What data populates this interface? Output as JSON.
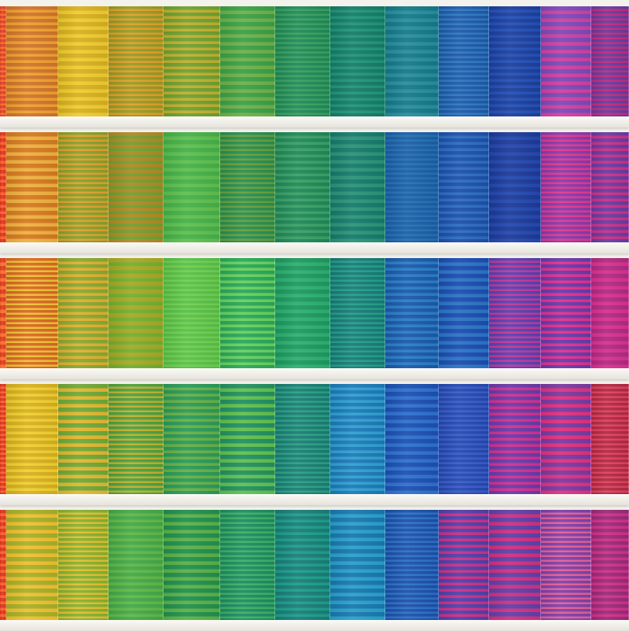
{
  "artwork": {
    "rows": [
      {
        "panels": [
          [
            "#e0442a",
            "#ff6a2a"
          ],
          [
            "#d0752a",
            "#f0a030"
          ],
          [
            "#d8b020",
            "#f0cc30"
          ],
          [
            "#9a9a25",
            "#e0a028"
          ],
          [
            "#70a030",
            "#c0b030"
          ],
          [
            "#3aa048",
            "#70b048"
          ],
          [
            "#1f8a58",
            "#3aa060"
          ],
          [
            "#167c66",
            "#20957a"
          ],
          [
            "#147a86",
            "#2a8ca0"
          ],
          [
            "#1d5aa8",
            "#2f77c0"
          ],
          [
            "#1d3f9c",
            "#2350b8"
          ],
          [
            "#7b4ab8",
            "#d040a0"
          ],
          [
            "#6a3a9c",
            "#c02a80"
          ]
        ]
      },
      {
        "panels": [
          [
            "#e03820",
            "#ff6030"
          ],
          [
            "#d47a20",
            "#f0b040"
          ],
          [
            "#8aa028",
            "#e0a030"
          ],
          [
            "#b08a25",
            "#6ea030"
          ],
          [
            "#46b048",
            "#5ec050"
          ],
          [
            "#2a8e4e",
            "#64a040"
          ],
          [
            "#1f8858",
            "#3aa066"
          ],
          [
            "#167a6c",
            "#2a9478"
          ],
          [
            "#1a5ea6",
            "#2570b4"
          ],
          [
            "#1c50aa",
            "#2c6cc0"
          ],
          [
            "#1c3a98",
            "#2448b0"
          ],
          [
            "#8a3aa8",
            "#e03890"
          ],
          [
            "#6a3aa0",
            "#c83088"
          ]
        ]
      },
      {
        "panels": [
          [
            "#e04020",
            "#ff7030"
          ],
          [
            "#d86a20",
            "#f0c038"
          ],
          [
            "#8aa830",
            "#e0b030"
          ],
          [
            "#a8a825",
            "#70b030"
          ],
          [
            "#58c048",
            "#70d050"
          ],
          [
            "#2aa858",
            "#68d060"
          ],
          [
            "#1f9860",
            "#2cb070"
          ],
          [
            "#197a78",
            "#22a088"
          ],
          [
            "#1a5aa8",
            "#2a7cc8"
          ],
          [
            "#1c4cb0",
            "#2a74c4"
          ],
          [
            "#5a40b0",
            "#c03898"
          ],
          [
            "#6a3aa8",
            "#e03090"
          ],
          [
            "#b02a80",
            "#d83090"
          ]
        ]
      },
      {
        "panels": [
          [
            "#e03820",
            "#ff6030"
          ],
          [
            "#d8b020",
            "#f0d030"
          ],
          [
            "#70a838",
            "#e0b830"
          ],
          [
            "#4ea040",
            "#c0b030"
          ],
          [
            "#2a9a58",
            "#68b048"
          ],
          [
            "#239060",
            "#60c050"
          ],
          [
            "#1a7d74",
            "#2aa084"
          ],
          [
            "#1c7ab8",
            "#30a0d0"
          ],
          [
            "#1c50b0",
            "#2e70d0"
          ],
          [
            "#2448b0",
            "#3a5cc8"
          ],
          [
            "#6a3aa8",
            "#d03090"
          ],
          [
            "#7a3aa0",
            "#e03080"
          ],
          [
            "#b02a40",
            "#e04060"
          ]
        ]
      },
      {
        "panels": [
          [
            "#e03820",
            "#ff6030"
          ],
          [
            "#a8b028",
            "#f0c030"
          ],
          [
            "#88b030",
            "#e0c030"
          ],
          [
            "#44a848",
            "#60b848"
          ],
          [
            "#20904e",
            "#5cb048"
          ],
          [
            "#1e8c60",
            "#3cb068"
          ],
          [
            "#1a7d78",
            "#1c9e8a"
          ],
          [
            "#1878b0",
            "#2aa0c8"
          ],
          [
            "#1c50a8",
            "#2c70c8"
          ],
          [
            "#5040a8",
            "#c83088"
          ],
          [
            "#6040a8",
            "#d03080"
          ],
          [
            "#8040a8",
            "#e06098"
          ],
          [
            "#9a2a78",
            "#d03088"
          ]
        ]
      }
    ]
  }
}
